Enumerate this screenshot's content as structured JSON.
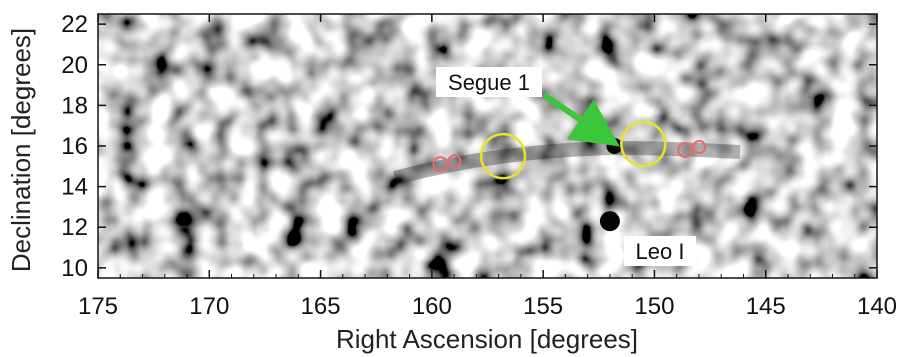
{
  "chart_data": {
    "type": "heatmap",
    "xlabel": "Right Ascension [degrees]",
    "ylabel": "Declination [degrees]",
    "xlim": [
      175,
      140
    ],
    "ylim": [
      9.5,
      22.5
    ],
    "xticks": [
      "175",
      "170",
      "165",
      "160",
      "155",
      "150",
      "145",
      "140"
    ],
    "yticks": [
      "10",
      "12",
      "14",
      "16",
      "18",
      "20",
      "22"
    ],
    "annotations": [
      {
        "label": "Segue 1",
        "arrow_color": "#3cc63c"
      },
      {
        "label": "Leo I"
      }
    ],
    "markers": {
      "yellow_circles": [
        {
          "ra": 156.8,
          "dec": 15.5
        },
        {
          "ra": 150.5,
          "dec": 16.1
        }
      ],
      "red_circle_pairs": [
        {
          "ra": 159.3,
          "dec": 15.2
        },
        {
          "ra": 148.3,
          "dec": 15.9
        }
      ],
      "yellow_color": "#e8e22a",
      "red_color": "#e86a6a"
    },
    "dark_spots": [
      {
        "ra": 152.0,
        "dec": 12.3
      },
      {
        "ra": 151.8,
        "dec": 16.0
      }
    ],
    "colormap": "grayscale"
  }
}
